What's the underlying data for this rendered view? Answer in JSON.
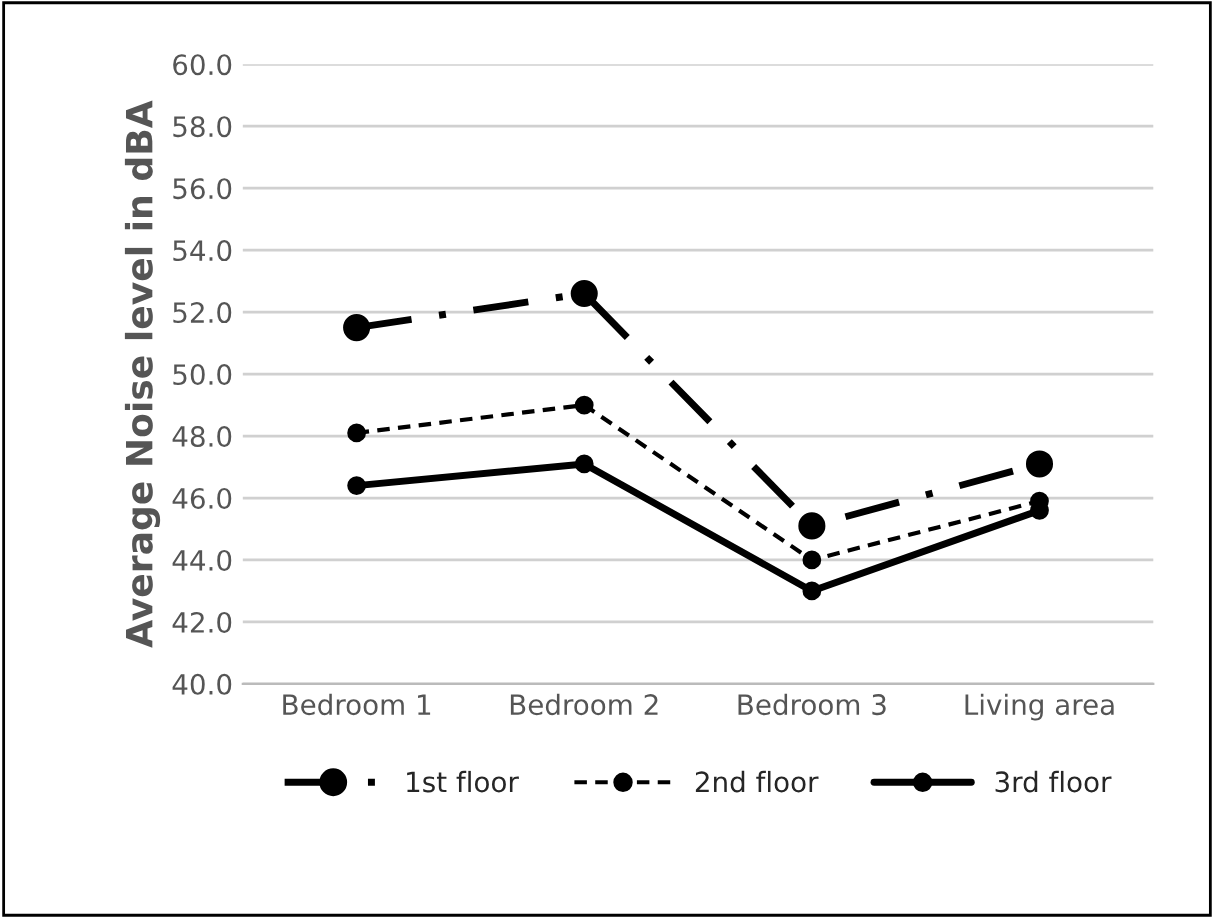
{
  "chart_data": {
    "type": "line",
    "ylabel": "Average Noise level in dBA",
    "categories": [
      "Bedroom 1",
      "Bedroom 2",
      "Bedroom 3",
      "Living area"
    ],
    "series": [
      {
        "name": "1st floor",
        "color": "#000000",
        "line_style": "dashdot",
        "values": [
          51.5,
          52.6,
          45.1,
          47.1
        ]
      },
      {
        "name": "2nd floor",
        "color": "#000000",
        "line_style": "dashed",
        "values": [
          48.1,
          49.0,
          44.0,
          45.9
        ]
      },
      {
        "name": "3rd floor",
        "color": "#000000",
        "line_style": "solid",
        "values": [
          46.4,
          47.1,
          43.0,
          45.6
        ]
      }
    ],
    "ylim": [
      40,
      60
    ],
    "yticks": [
      {
        "value": 40,
        "label": "40.0"
      },
      {
        "value": 42,
        "label": "42.0"
      },
      {
        "value": 44,
        "label": "44.0"
      },
      {
        "value": 46,
        "label": "46.0"
      },
      {
        "value": 48,
        "label": "48.0"
      },
      {
        "value": 50,
        "label": "50.0"
      },
      {
        "value": 52,
        "label": "52.0"
      },
      {
        "value": 54,
        "label": "54.0"
      },
      {
        "value": 56,
        "label": "56.0"
      },
      {
        "value": 58,
        "label": "58.0"
      },
      {
        "value": 60,
        "label": "60.0"
      }
    ],
    "grid": "y",
    "legend": "bottom",
    "marker": "circle"
  }
}
